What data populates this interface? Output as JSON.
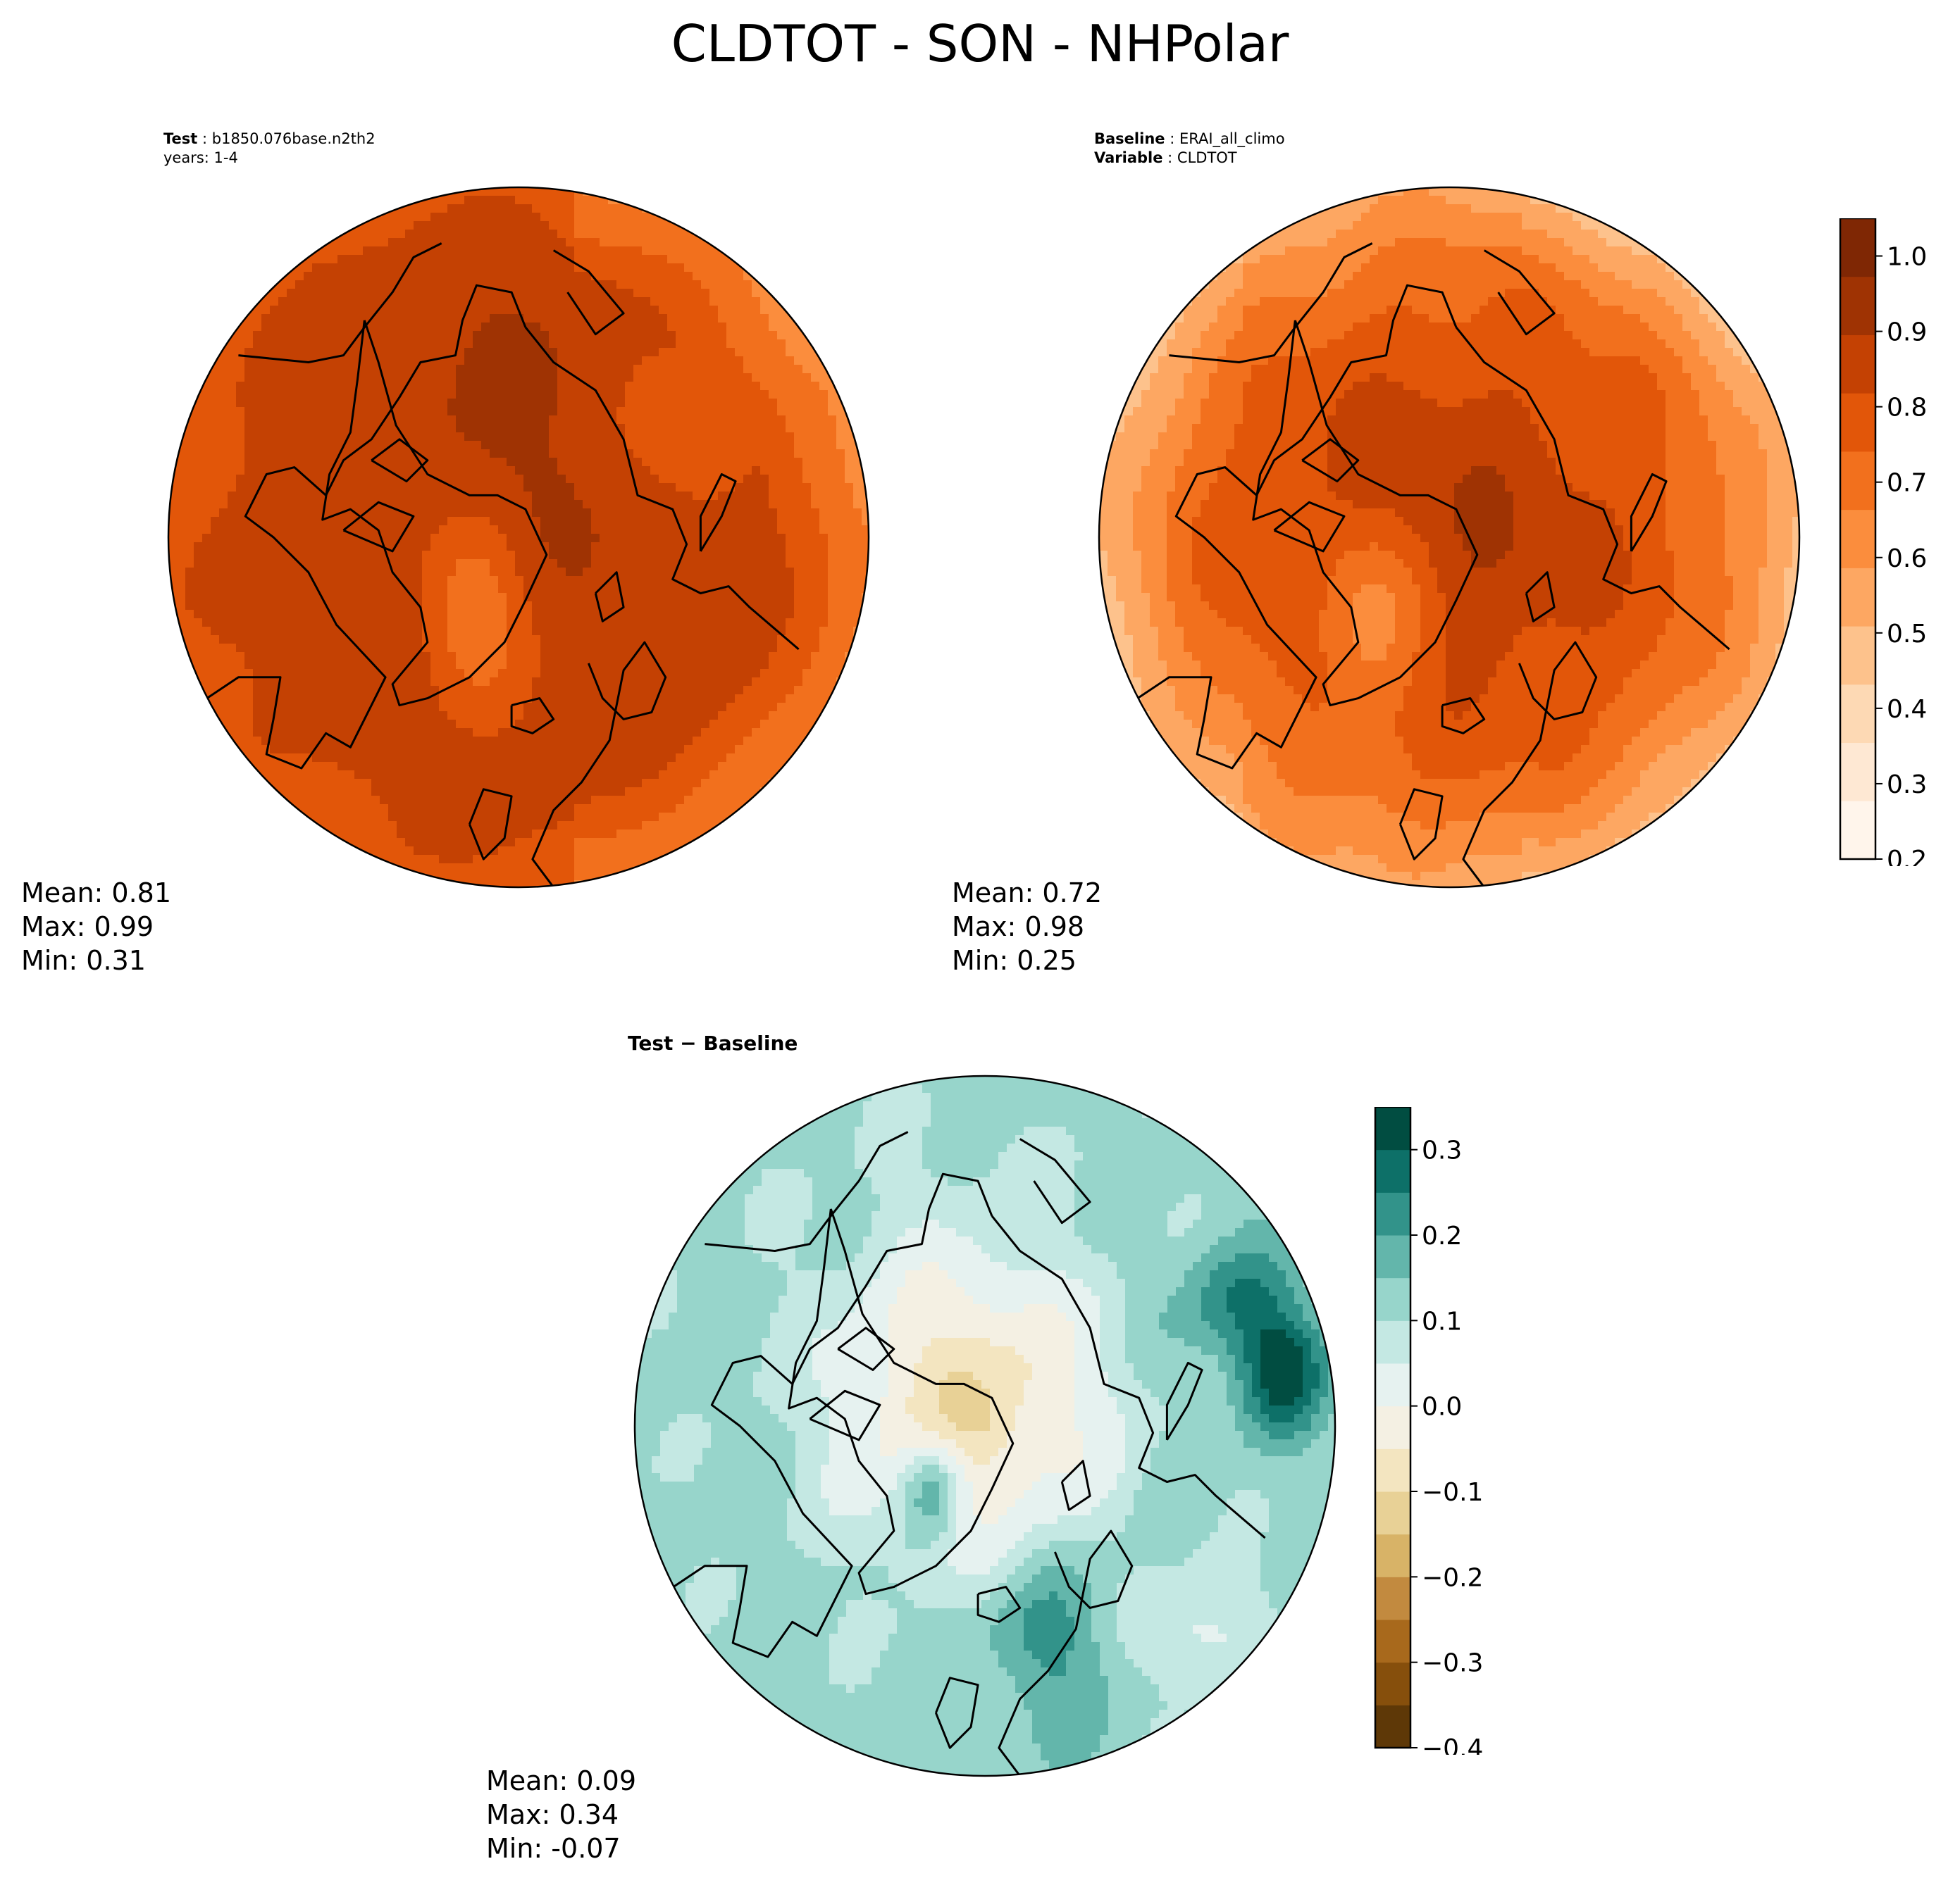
{
  "figure": {
    "title": "CLDTOT - SON - NHPolar"
  },
  "panels": {
    "test": {
      "header_bold": "Test",
      "header_text": " : b1850.076base.n2th2",
      "header_line2": "years: 1-4",
      "stats": {
        "mean": "Mean:  0.81",
        "max": "Max:  0.99",
        "min": "Min:  0.31"
      },
      "colormap": "Oranges",
      "field": "test"
    },
    "baseline": {
      "header_bold": "Baseline",
      "header_text": " : ERAI_all_climo",
      "header2_bold": "Variable",
      "header2_text": " : CLDTOT",
      "stats": {
        "mean": "Mean:  0.72",
        "max": "Max:  0.98",
        "min": "Min:  0.25"
      },
      "colormap": "Oranges",
      "field": "baseline"
    },
    "diff": {
      "header_bold": "Test − Baseline",
      "stats": {
        "mean": "Mean:  0.09",
        "max": "Max:  0.34",
        "min": "Min: -0.07"
      },
      "colormap": "BrBG",
      "field": "diff"
    }
  },
  "colorbars": {
    "main": {
      "range": [
        0.2,
        1.05
      ],
      "ticks": [
        "0.2",
        "0.3",
        "0.4",
        "0.5",
        "0.6",
        "0.7",
        "0.8",
        "0.9",
        "1.0"
      ],
      "tick_values": [
        0.2,
        0.3,
        0.4,
        0.5,
        0.6,
        0.7,
        0.8,
        0.9,
        1.0
      ],
      "colors": [
        "#fff5eb",
        "#fee8d3",
        "#fdd9b4",
        "#fdc28c",
        "#fda762",
        "#fb8d3d",
        "#f2701d",
        "#e25609",
        "#c44103",
        "#9f3303",
        "#7f2704"
      ]
    },
    "diff": {
      "range": [
        -0.4,
        0.35
      ],
      "ticks": [
        "−0.4",
        "−0.3",
        "−0.2",
        "−0.1",
        "0.0",
        "0.1",
        "0.2",
        "0.3"
      ],
      "tick_values": [
        -0.4,
        -0.3,
        -0.2,
        -0.1,
        0.0,
        0.1,
        0.2,
        0.3
      ],
      "colors": [
        "#5e3807",
        "#864f0c",
        "#a8691c",
        "#c28a3f",
        "#d8b367",
        "#e8d196",
        "#f3e5c0",
        "#f4f0e3",
        "#e6f2f0",
        "#c4e8e3",
        "#97d5cb",
        "#63b6ab",
        "#32938a",
        "#0d7068",
        "#014d41"
      ]
    }
  }
}
